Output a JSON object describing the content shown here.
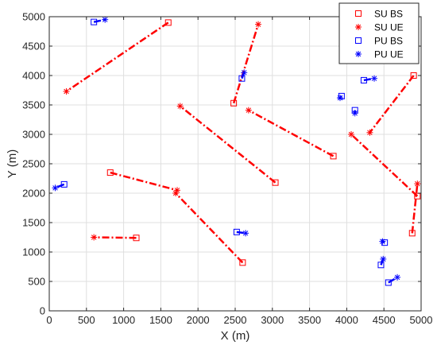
{
  "chart_data": {
    "type": "scatter",
    "title": "",
    "xlabel": "X (m)",
    "ylabel": "Y (m)",
    "xlim": [
      0,
      5000
    ],
    "ylim": [
      0,
      5000
    ],
    "xticks": [
      "0",
      "500",
      "1000",
      "1500",
      "2000",
      "2500",
      "3000",
      "3500",
      "4000",
      "4500",
      "5000"
    ],
    "yticks": [
      "0",
      "500",
      "1000",
      "1500",
      "2000",
      "2500",
      "3000",
      "3500",
      "4000",
      "4500",
      "5000"
    ],
    "grid": true,
    "legend_position": "top-right",
    "colors": {
      "su": "#ff0000",
      "pu": "#0000ff",
      "axis": "#262626",
      "grid": "#dfdfdf"
    },
    "legend": [
      {
        "label": "SU BS",
        "marker": "square",
        "color": "#ff0000"
      },
      {
        "label": "SU UE",
        "marker": "asterisk",
        "color": "#ff0000"
      },
      {
        "label": "PU BS",
        "marker": "square",
        "color": "#0000ff"
      },
      {
        "label": "PU UE",
        "marker": "asterisk",
        "color": "#0000ff"
      }
    ],
    "su_links": [
      {
        "bs": [
          1600,
          4900
        ],
        "ue": [
          230,
          3730
        ]
      },
      {
        "bs": [
          2480,
          3530
        ],
        "ue": [
          2810,
          4870
        ]
      },
      {
        "bs": [
          3040,
          2180
        ],
        "ue": [
          1760,
          3480
        ]
      },
      {
        "bs": [
          3820,
          2630
        ],
        "ue": [
          2680,
          3410
        ]
      },
      {
        "bs": [
          4900,
          4000
        ],
        "ue": [
          4310,
          3030
        ]
      },
      {
        "bs": [
          820,
          2350
        ],
        "ue": [
          1720,
          2050
        ]
      },
      {
        "bs": [
          2600,
          820
        ],
        "ue": [
          1700,
          2000
        ]
      },
      {
        "bs": [
          1170,
          1240
        ],
        "ue": [
          600,
          1250
        ]
      },
      {
        "bs": [
          4880,
          1320
        ],
        "ue": [
          4950,
          2160
        ]
      },
      {
        "bs": [
          4950,
          1950
        ],
        "ue": [
          4060,
          3000
        ]
      }
    ],
    "pu_links": [
      {
        "bs": [
          600,
          4910
        ],
        "ue": [
          750,
          4950
        ]
      },
      {
        "bs": [
          2590,
          3950
        ],
        "ue": [
          2620,
          4050
        ]
      },
      {
        "bs": [
          200,
          2150
        ],
        "ue": [
          80,
          2090
        ]
      },
      {
        "bs": [
          2520,
          1340
        ],
        "ue": [
          2640,
          1320
        ]
      },
      {
        "bs": [
          4230,
          3920
        ],
        "ue": [
          4370,
          3950
        ]
      },
      {
        "bs": [
          3930,
          3650
        ],
        "ue": [
          3910,
          3620
        ]
      },
      {
        "bs": [
          4110,
          3410
        ],
        "ue": [
          4110,
          3360
        ]
      },
      {
        "bs": [
          4510,
          1160
        ],
        "ue": [
          4480,
          1180
        ]
      },
      {
        "bs": [
          4460,
          780
        ],
        "ue": [
          4490,
          880
        ]
      },
      {
        "bs": [
          4560,
          480
        ],
        "ue": [
          4680,
          570
        ]
      }
    ]
  }
}
